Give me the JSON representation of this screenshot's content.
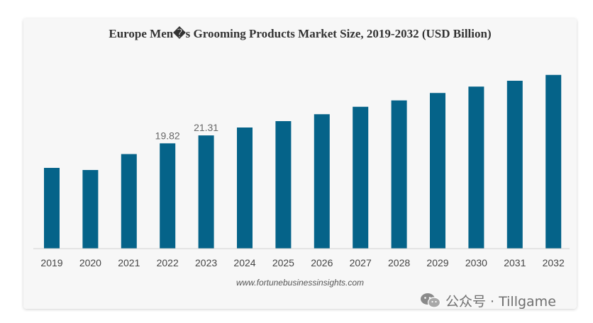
{
  "chart_data": {
    "type": "bar",
    "title": "Europe Men�s Grooming Products Market Size, 2019-2032 (USD Billion)",
    "categories": [
      "2019",
      "2020",
      "2021",
      "2022",
      "2023",
      "2024",
      "2025",
      "2026",
      "2027",
      "2028",
      "2029",
      "2030",
      "2031",
      "2032"
    ],
    "values": [
      15.2,
      14.8,
      17.8,
      19.82,
      21.31,
      22.8,
      24.0,
      25.3,
      26.7,
      27.9,
      29.3,
      30.5,
      31.6,
      32.7
    ],
    "data_labels": [
      "",
      "",
      "",
      "19.82",
      "21.31",
      "",
      "",
      "",
      "",
      "",
      "",
      "",
      "",
      ""
    ],
    "ylim": [
      0,
      34
    ],
    "bar_color": "#056389",
    "grid": false,
    "legend": "none"
  },
  "source": "www.fortunebusinessinsights.com",
  "watermark": {
    "text": "公众号 · Tillgame",
    "icon": "wechat-icon"
  }
}
